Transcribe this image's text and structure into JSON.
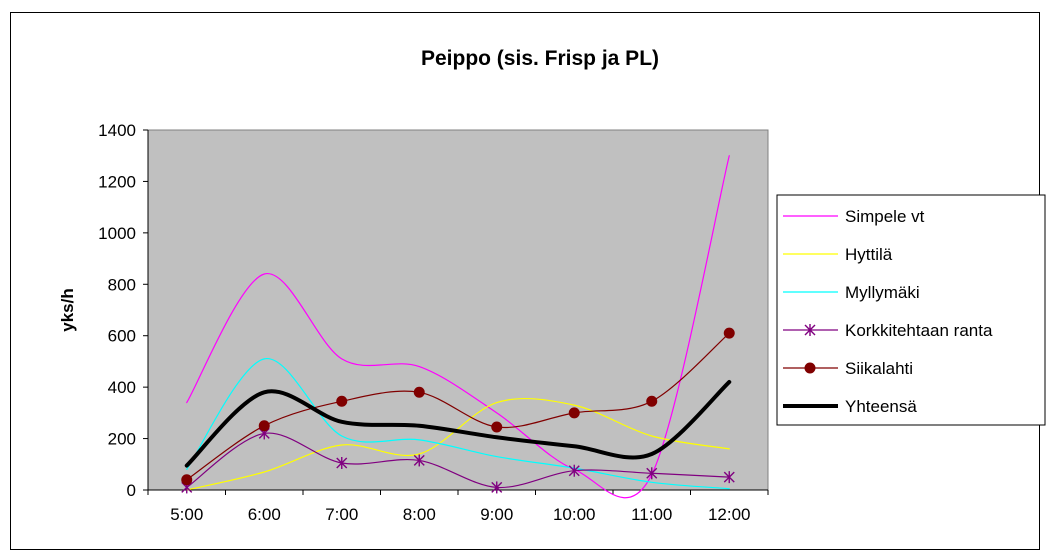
{
  "chart_data": {
    "type": "line",
    "title": "Peippo (sis. Frisp ja PL)",
    "xlabel": "",
    "ylabel": "yks/h",
    "categories": [
      "5:00",
      "6:00",
      "7:00",
      "8:00",
      "9:00",
      "10:00",
      "11:00",
      "12:00"
    ],
    "ylim": [
      0,
      1400
    ],
    "yticks": [
      0,
      200,
      400,
      600,
      800,
      1000,
      1200,
      1400
    ],
    "grid": false,
    "plot_background": "#c0c0c0",
    "legend_position": "right",
    "series": [
      {
        "name": "Simpele vt",
        "color": "#ff00ff",
        "stroke_width": 1.2,
        "marker": "none",
        "values": [
          340,
          840,
          510,
          480,
          300,
          80,
          60,
          1300
        ]
      },
      {
        "name": "Hyttilä",
        "color": "#ffff00",
        "stroke_width": 1.2,
        "marker": "none",
        "values": [
          0,
          70,
          175,
          140,
          340,
          330,
          210,
          160
        ]
      },
      {
        "name": "Myllymäki",
        "color": "#00ffff",
        "stroke_width": 1.2,
        "marker": "none",
        "values": [
          80,
          510,
          210,
          195,
          130,
          85,
          30,
          5
        ]
      },
      {
        "name": "Korkkitehtaan ranta",
        "color": "#800080",
        "stroke_width": 1.2,
        "marker": "star",
        "values": [
          10,
          220,
          105,
          115,
          10,
          75,
          65,
          50
        ]
      },
      {
        "name": "Siikalahti",
        "color": "#800000",
        "stroke_width": 1.2,
        "marker": "circle",
        "values": [
          40,
          250,
          345,
          380,
          245,
          300,
          345,
          610
        ]
      },
      {
        "name": "Yhteensä",
        "color": "#000000",
        "stroke_width": 4,
        "marker": "none",
        "values": [
          95,
          380,
          265,
          250,
          205,
          170,
          140,
          420
        ]
      }
    ]
  }
}
